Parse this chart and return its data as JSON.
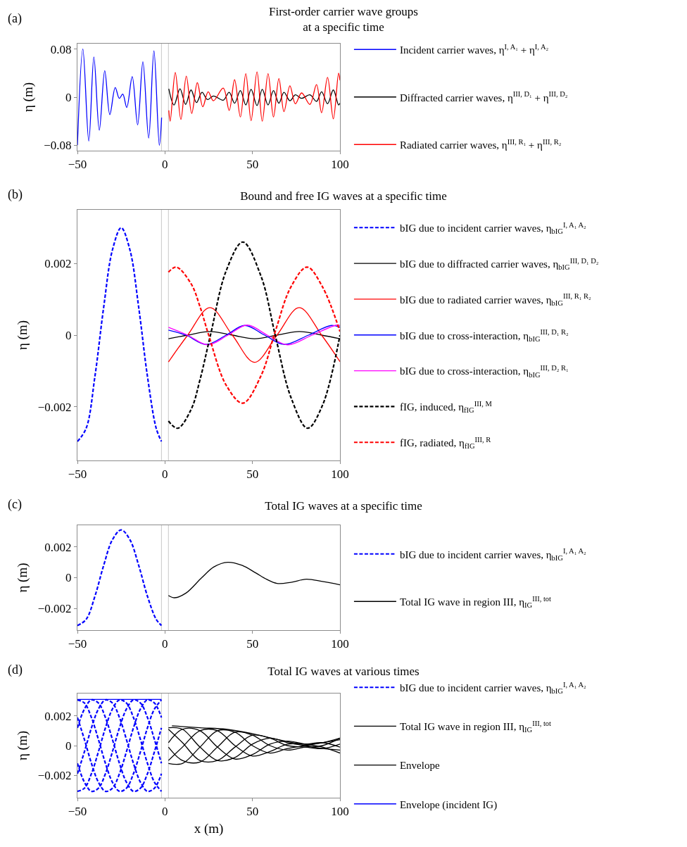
{
  "chart_data": [
    {
      "type": "line",
      "title": "First-order carrier wave groups\nat a specific time",
      "ylabel": "η (m)",
      "annotations": [
        "(a)"
      ],
      "legend": "right",
      "xlim": [
        -50,
        100
      ],
      "ylim": [
        -0.089,
        0.089
      ],
      "xticks": [
        -50,
        0,
        50,
        100
      ],
      "yticks": [
        -0.08,
        0,
        0.08
      ],
      "ref_lines": [
        {
          "axis": "x",
          "value": -2,
          "color": "#c8c8c8"
        },
        {
          "axis": "x",
          "value": 2,
          "color": "#c8c8c8"
        }
      ],
      "series": [
        {
          "type": "line",
          "name": "Incident carrier waves, η$^{I, A₁}$ + η$^{I, A₂}$",
          "color": "#0000ff",
          "line_style": "solid",
          "x": [
            -50,
            -46.9,
            -43.5,
            -40.6,
            -37.5,
            -34.4,
            -31.5,
            -28.4,
            -26.1,
            -24.1,
            -21.8,
            -18.7,
            -15.6,
            -12.6,
            -9.3,
            -6.3,
            -3.2,
            -1.9
          ],
          "values": [
            -0.08,
            0.08,
            -0.073,
            0.067,
            -0.055,
            0.044,
            -0.029,
            0.016,
            -0.002,
            0.005,
            -0.017,
            0.034,
            -0.046,
            0.059,
            -0.068,
            0.077,
            -0.08,
            -0.034
          ]
        },
        {
          "type": "line",
          "name": "Diffracted carrier waves, η$^{III, D₁}$ + η$^{III, D₂}$",
          "color": "#000000",
          "line_style": "solid",
          "x": [
            2.2,
            5.2,
            8.6,
            11.8,
            14.9,
            18.0,
            21.2,
            24.3,
            27.7,
            33.3,
            36.7,
            39.8,
            43.1,
            46.2,
            49.2,
            52.6,
            55.6,
            58.9,
            62.0,
            65.1,
            68.0,
            71.4,
            74.5,
            78.1,
            82.8,
            86.6,
            89.5,
            92.9,
            96.2,
            99.2,
            100
          ],
          "values": [
            0.014,
            -0.013,
            0.014,
            -0.012,
            0.012,
            -0.009,
            0.008,
            -0.004,
            0.002,
            -0.005,
            0.008,
            -0.01,
            0.011,
            -0.013,
            0.013,
            -0.014,
            0.013,
            -0.013,
            0.011,
            -0.01,
            0.008,
            -0.006,
            0.004,
            -0.002,
            0.004,
            -0.007,
            0.009,
            -0.011,
            0.012,
            -0.013,
            -0.01
          ]
        },
        {
          "type": "line",
          "name": "Radiated carrier waves, η$^{III, R₁}$ + η$^{III, R₂}$",
          "color": "#ff0000",
          "line_style": "solid",
          "x": [
            2.2,
            3.0,
            5.9,
            9.1,
            12.2,
            15.3,
            18.5,
            21.6,
            24.7,
            27.7,
            33.3,
            36.7,
            39.8,
            43.1,
            46.2,
            49.2,
            52.6,
            55.6,
            58.9,
            62.0,
            65.1,
            68.0,
            71.4,
            74.5,
            78.1,
            82.8,
            86.6,
            89.5,
            92.9,
            96.2,
            99.2,
            100
          ],
          "values": [
            -0.022,
            -0.04,
            0.041,
            -0.037,
            0.035,
            -0.027,
            0.024,
            -0.016,
            0.009,
            -0.006,
            0.015,
            -0.022,
            0.029,
            -0.033,
            0.039,
            -0.039,
            0.042,
            -0.04,
            0.039,
            -0.033,
            0.031,
            -0.024,
            0.019,
            -0.011,
            0.007,
            -0.012,
            0.021,
            -0.026,
            0.033,
            -0.036,
            0.04,
            0.028
          ]
        }
      ]
    },
    {
      "type": "line",
      "title": "Bound and free IG waves at a specific time",
      "ylabel": "η (m)",
      "annotations": [
        "(b)"
      ],
      "legend": "right",
      "xlim": [
        -50,
        100
      ],
      "ylim": [
        -0.0035,
        0.0035
      ],
      "xticks": [
        -50,
        0,
        50,
        100
      ],
      "yticks": [
        -0.002,
        0,
        0.002
      ],
      "ref_lines": [
        {
          "axis": "x",
          "value": -2,
          "color": "#c8c8c8"
        },
        {
          "axis": "x",
          "value": 2,
          "color": "#c8c8c8"
        }
      ],
      "series": [
        {
          "type": "line",
          "name": "bIG due to incident carrier waves, η$_{bIG}$$^{I, A₁ A₂}$",
          "color": "#0000ff",
          "line_style": "dashed",
          "x": [
            -50,
            -45,
            -40,
            -35,
            -30,
            -25,
            -20,
            -15,
            -10,
            -5,
            -2
          ],
          "values": [
            -0.00297,
            -0.0026,
            -0.00115,
            0.00078,
            0.00238,
            0.003,
            0.00238,
            0.00078,
            -0.00115,
            -0.0026,
            -0.00297
          ]
        },
        {
          "type": "line",
          "name": "bIG due to diffracted carrier waves, η$_{bIG}$$^{III, D₁ D₂}$",
          "color": "#000000",
          "line_style": "solid",
          "x": [
            2,
            13,
            25.7,
            38.5,
            51.2,
            64,
            76.7,
            89.5,
            100
          ],
          "values": [
            -0.0001,
            0,
            0.0001,
            0,
            -0.0001,
            0,
            0.0001,
            0,
            -0.0001
          ]
        },
        {
          "type": "line",
          "name": "bIG due to radiated carrier waves, η$_{bIG}$$^{III, R₁ R₂}$",
          "color": "#ff0000",
          "line_style": "solid",
          "x": [
            2,
            13,
            25.7,
            38.5,
            51.2,
            64,
            76.7,
            89.5,
            100
          ],
          "values": [
            -0.00075,
            0,
            0.00077,
            0,
            -0.00076,
            0,
            0.00077,
            0,
            -0.00074
          ]
        },
        {
          "type": "line",
          "name": "bIG due to cross-interaction, η$_{bIG}$$^{III, D₁ R₂}$",
          "color": "#0000ff",
          "line_style": "solid",
          "x": [
            2,
            12,
            23.5,
            35,
            45.5,
            57,
            68,
            82,
            95,
            100
          ],
          "values": [
            0.00014,
            0,
            -0.00026,
            0,
            0.00027,
            0,
            -0.00026,
            0,
            0.00027,
            0.00022
          ]
        },
        {
          "type": "line",
          "name": "bIG due to cross-interaction, η$_{bIG}$$^{III, D₂ R₁}$",
          "color": "#ff00ff",
          "line_style": "solid",
          "x": [
            2,
            13,
            24.5,
            36,
            47,
            58.5,
            70,
            84,
            98,
            100
          ],
          "values": [
            0.00022,
            0,
            -0.00027,
            0,
            0.00028,
            0,
            -0.00027,
            0,
            0.00028,
            0.00027
          ]
        },
        {
          "type": "line",
          "name": "fIG, induced, η$_{fIG}$$^{III, M}$",
          "color": "#000000",
          "line_style": "dashed",
          "x": [
            2,
            7.3,
            15,
            20,
            26,
            35,
            44.5,
            55,
            63,
            72,
            81.5,
            90,
            100
          ],
          "values": [
            -0.0024,
            -0.0026,
            -0.00207,
            -0.00125,
            0,
            0.0018,
            0.0026,
            0.00163,
            0,
            -0.00174,
            -0.0026,
            -0.00196,
            0
          ]
        },
        {
          "type": "line",
          "name": "fIG, radiated, η$_{fIG}$$^{III, R}$",
          "color": "#ff0000",
          "line_style": "dashed",
          "x": [
            2,
            6.5,
            15,
            20,
            25,
            35,
            44.5,
            55,
            63,
            72,
            81.2,
            90,
            100
          ],
          "values": [
            0.00176,
            0.0019,
            0.00143,
            0.0008,
            0,
            -0.0014,
            -0.0019,
            -0.00112,
            0.0001,
            0.00135,
            0.0019,
            0.00135,
            0.0001
          ]
        }
      ]
    },
    {
      "type": "line",
      "title": "Total IG waves at a specific time",
      "ylabel": "η (m)",
      "annotations": [
        "(c)"
      ],
      "legend": "right",
      "xlim": [
        -50,
        100
      ],
      "ylim": [
        -0.0034,
        0.0034
      ],
      "xticks": [
        -50,
        0,
        50,
        100
      ],
      "yticks": [
        -0.002,
        0,
        0.002
      ],
      "ref_lines": [
        {
          "axis": "x",
          "value": -2,
          "color": "#c8c8c8"
        },
        {
          "axis": "x",
          "value": 2,
          "color": "#c8c8c8"
        }
      ],
      "series": [
        {
          "type": "line",
          "name": "bIG due to incident carrier waves, η$_{bIG}$$^{I, A₁ A₂}$",
          "color": "#0000ff",
          "line_style": "dashed",
          "x": [
            -50,
            -45,
            -40,
            -35,
            -30,
            -25,
            -20,
            -15,
            -10,
            -5,
            -2
          ],
          "values": [
            -0.0031,
            -0.0027,
            -0.0012,
            0.0008,
            0.00246,
            0.0031,
            0.00246,
            0.0008,
            -0.0012,
            -0.0027,
            -0.0031
          ]
        },
        {
          "type": "line",
          "name": "Total IG wave in region III, η$_{IG}$$^{III, tot}$",
          "color": "#000000",
          "line_style": "solid",
          "x": [
            2,
            5.5,
            12,
            21,
            28,
            35.8,
            44,
            52,
            58,
            64,
            72,
            80.8,
            90,
            100
          ],
          "values": [
            -0.00115,
            -0.0013,
            -0.001,
            0,
            0.0007,
            0.001,
            0.0008,
            0.0003,
            -0.0001,
            -0.00037,
            -0.0003,
            -0.0001,
            -0.00025,
            -0.00046
          ]
        }
      ]
    },
    {
      "type": "line",
      "title": "Total IG waves at various times",
      "xlabel": "x (m)",
      "ylabel": "η (m)",
      "annotations": [
        "(d)"
      ],
      "legend": "right",
      "xlim": [
        -50,
        100
      ],
      "ylim": [
        -0.0035,
        0.0035
      ],
      "xticks": [
        -50,
        0,
        50,
        100
      ],
      "yticks": [
        -0.002,
        0,
        0.002
      ],
      "ref_lines": [
        {
          "axis": "x",
          "value": -2,
          "color": "#c8c8c8"
        },
        {
          "axis": "x",
          "value": 2,
          "color": "#c8c8c8"
        }
      ],
      "series": [
        {
          "type": "line",
          "name": "bIG due to incident carrier waves, η$_{bIG}$$^{I, A₁ A₂}$",
          "color": "#0000ff",
          "line_style": "dashed",
          "x": [
            -50,
            -46,
            -42,
            -38,
            -34,
            -30,
            -26,
            -22,
            -18,
            -14,
            -10,
            -6,
            -2
          ],
          "values": [
            -0.00307,
            -0.00286,
            -0.00189,
            -0.00041,
            0.00119,
            0.00246,
            0.00307,
            0.00286,
            0.00189,
            0.00041,
            -0.00119,
            -0.00246,
            -0.00307
          ]
        },
        {
          "type": "line",
          "name": "Total IG wave in region III, η$_{IG}$$^{III, tot}$",
          "color": "#000000",
          "line_style": "solid",
          "x": [
            2,
            10,
            20,
            30,
            40,
            50,
            60,
            70,
            80,
            90,
            100
          ],
          "values": [
            0.0012,
            0.0011,
            -0.0001,
            -0.001,
            -0.0008,
            0.0001,
            0.0005,
            0.0002,
            0,
            -0.0002,
            -0.0003
          ]
        },
        {
          "type": "line",
          "name": "Envelope",
          "color": "#000000",
          "line_style": "solid",
          "x": [
            4,
            20,
            35,
            50,
            65,
            80,
            90,
            100
          ],
          "values": [
            0.00133,
            0.0012,
            0.0011,
            0.0008,
            0.0004,
            0.0001,
            0.0002,
            0.0005
          ]
        },
        {
          "type": "line",
          "name": "Envelope (incident IG)",
          "color": "#0000ff",
          "line_style": "solid",
          "x": [
            -50,
            -2
          ],
          "values": [
            0.0031,
            0.0031
          ]
        },
        {
          "type": "line",
          "color": "#0000ff",
          "line_style": "dashed",
          "x": [
            -50,
            -46,
            -42,
            -38,
            -34,
            -30,
            -26,
            -22,
            -18,
            -14,
            -10,
            -6,
            -2
          ],
          "values": [
            -0.00119,
            -0.00246,
            -0.00307,
            -0.00286,
            -0.00189,
            -0.00041,
            0.00119,
            0.00246,
            0.00307,
            0.00286,
            0.00189,
            0.00041,
            -0.00119
          ]
        },
        {
          "type": "line",
          "color": "#0000ff",
          "line_style": "dashed",
          "x": [
            -50,
            -46,
            -42,
            -38,
            -34,
            -30,
            -26,
            -22,
            -18,
            -14,
            -10,
            -6,
            -2
          ],
          "values": [
            0.00189,
            0.00041,
            -0.00119,
            -0.00246,
            -0.00307,
            -0.00286,
            -0.00189,
            -0.00041,
            0.00119,
            0.00246,
            0.00307,
            0.00286,
            0.00189
          ]
        },
        {
          "type": "line",
          "color": "#0000ff",
          "line_style": "dashed",
          "x": [
            -50,
            -46,
            -42,
            -38,
            -34,
            -30,
            -26,
            -22,
            -18,
            -14,
            -10,
            -6,
            -2
          ],
          "values": [
            0.00307,
            0.00286,
            0.00189,
            0.00041,
            -0.00119,
            -0.00246,
            -0.00307,
            -0.00286,
            -0.00189,
            -0.00041,
            0.00119,
            0.00246,
            0.00307
          ]
        },
        {
          "type": "line",
          "color": "#0000ff",
          "line_style": "dashed",
          "x": [
            -50,
            -46,
            -42,
            -38,
            -34,
            -30,
            -26,
            -22,
            -18,
            -14,
            -10,
            -6,
            -2
          ],
          "values": [
            0.00119,
            0.00246,
            0.00307,
            0.00286,
            0.00189,
            0.00041,
            -0.00119,
            -0.00246,
            -0.00307,
            -0.00286,
            -0.00189,
            -0.00041,
            0.00119
          ]
        },
        {
          "type": "line",
          "color": "#0000ff",
          "line_style": "dashed",
          "x": [
            -50,
            -46,
            -42,
            -38,
            -34,
            -30,
            -26,
            -22,
            -18,
            -14,
            -10,
            -6,
            -2
          ],
          "values": [
            -0.00189,
            -0.00041,
            0.00119,
            0.00246,
            0.00307,
            0.00286,
            0.00189,
            0.00041,
            -0.00119,
            -0.00246,
            -0.00307,
            -0.00286,
            -0.00189
          ]
        },
        {
          "type": "line",
          "color": "#000000",
          "line_style": "solid",
          "x": [
            2,
            10,
            20,
            30,
            40,
            50,
            60,
            70,
            80,
            90,
            100
          ],
          "values": [
            0.0002,
            0.0011,
            0.001,
            -0.0001,
            -0.0009,
            -0.0006,
            0.0001,
            0.0003,
            0.0001,
            -0.0001,
            -0.0005
          ]
        },
        {
          "type": "line",
          "color": "#000000",
          "line_style": "solid",
          "x": [
            2,
            10,
            20,
            30,
            40,
            50,
            60,
            70,
            80,
            90,
            100
          ],
          "values": [
            -0.001,
            -0.0001,
            0.001,
            0.001,
            0,
            -0.0007,
            -0.0004,
            0.0001,
            0.0001,
            0.0002,
            -0.0001
          ]
        },
        {
          "type": "line",
          "color": "#000000",
          "line_style": "solid",
          "x": [
            2,
            10,
            20,
            30,
            40,
            50,
            60,
            70,
            80,
            90,
            100
          ],
          "values": [
            -0.0012,
            -0.0012,
            -0.0001,
            0.001,
            0.0009,
            0,
            -0.0005,
            -0.0002,
            0,
            0.0002,
            0.0004
          ]
        },
        {
          "type": "line",
          "color": "#000000",
          "line_style": "solid",
          "x": [
            2,
            10,
            20,
            30,
            40,
            50,
            60,
            70,
            80,
            90,
            100
          ],
          "values": [
            -0.0001,
            -0.001,
            -0.0011,
            -0.0001,
            0.0009,
            0.0007,
            0,
            -0.0003,
            -0.0001,
            0,
            0.0005
          ]
        },
        {
          "type": "line",
          "color": "#000000",
          "line_style": "solid",
          "x": [
            2,
            10,
            20,
            30,
            40,
            50,
            60,
            70,
            80,
            90,
            100
          ],
          "values": [
            0.0011,
            0.0002,
            -0.001,
            -0.001,
            -0.0001,
            0.0007,
            0.0005,
            0,
            -0.0001,
            -0.0002,
            0.0001
          ]
        }
      ]
    }
  ]
}
